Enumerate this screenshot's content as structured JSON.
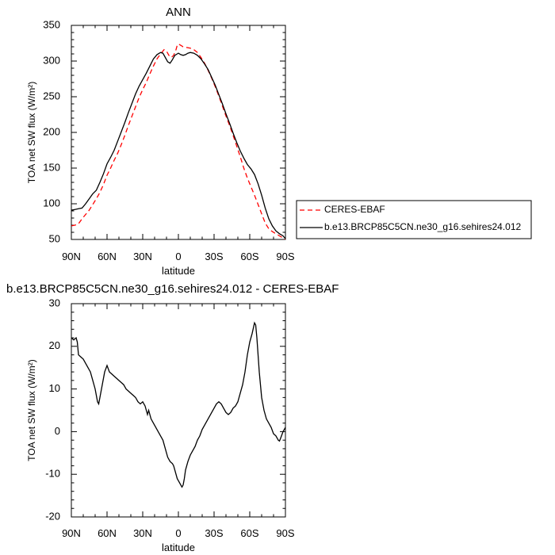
{
  "chart_data": [
    {
      "type": "line",
      "title": "ANN",
      "xlabel": "latitude",
      "ylabel": "TOA net SW flux (W/m²)",
      "x_axis_direction": "90N to 90S",
      "x_ticks": [
        "90N",
        "60N",
        "30N",
        "0",
        "30S",
        "60S",
        "90S"
      ],
      "x_tick_values": [
        90,
        60,
        30,
        0,
        -30,
        -60,
        -90
      ],
      "xlim": [
        90,
        -90
      ],
      "y_ticks": [
        "50",
        "100",
        "150",
        "200",
        "250",
        "300",
        "350"
      ],
      "ylim": [
        50,
        350
      ],
      "grid": false,
      "legend": {
        "placement": "right",
        "entries": [
          "CERES-EBAF",
          "b.e13.BRCP85C5CN.ne30_g16.sehires24.012"
        ]
      },
      "series": [
        {
          "name": "CERES-EBAF",
          "color": "#ff0000",
          "style": "dashed",
          "points": [
            [
              90,
              69
            ],
            [
              87,
              70
            ],
            [
              84,
              72
            ],
            [
              81,
              79
            ],
            [
              78,
              85
            ],
            [
              75,
              91
            ],
            [
              72,
              99
            ],
            [
              69,
              107
            ],
            [
              66,
              116
            ],
            [
              63,
              127
            ],
            [
              60,
              140
            ],
            [
              57,
              150
            ],
            [
              54,
              161
            ],
            [
              51,
              171
            ],
            [
              48,
              183
            ],
            [
              45,
              196
            ],
            [
              42,
              210
            ],
            [
              39,
              223
            ],
            [
              36,
              236
            ],
            [
              33,
              249
            ],
            [
              30,
              260
            ],
            [
              27,
              270
            ],
            [
              24,
              282
            ],
            [
              21,
              293
            ],
            [
              18,
              303
            ],
            [
              15,
              310
            ],
            [
              12,
              316
            ],
            [
              10,
              314
            ],
            [
              8,
              308
            ],
            [
              6,
              305
            ],
            [
              4,
              308
            ],
            [
              2,
              316
            ],
            [
              1,
              322
            ],
            [
              0,
              324
            ],
            [
              -2,
              322
            ],
            [
              -4,
              320
            ],
            [
              -7,
              319
            ],
            [
              -10,
              318
            ],
            [
              -13,
              316
            ],
            [
              -16,
              312
            ],
            [
              -19,
              305
            ],
            [
              -22,
              297
            ],
            [
              -25,
              287
            ],
            [
              -28,
              276
            ],
            [
              -31,
              264
            ],
            [
              -34,
              251
            ],
            [
              -37,
              237
            ],
            [
              -40,
              223
            ],
            [
              -43,
              210
            ],
            [
              -46,
              196
            ],
            [
              -49,
              181
            ],
            [
              -52,
              166
            ],
            [
              -55,
              150
            ],
            [
              -58,
              136
            ],
            [
              -61,
              124
            ],
            [
              -64,
              112
            ],
            [
              -67,
              99
            ],
            [
              -70,
              86
            ],
            [
              -73,
              73
            ],
            [
              -76,
              65
            ],
            [
              -79,
              61
            ],
            [
              -82,
              58
            ],
            [
              -85,
              55
            ],
            [
              -88,
              52
            ],
            [
              -90,
              50
            ]
          ]
        },
        {
          "name": "b.e13.BRCP85C5CN.ne30_g16.sehires24.012",
          "color": "#000000",
          "style": "solid",
          "points": [
            [
              90,
              91
            ],
            [
              87,
              92
            ],
            [
              84,
              93
            ],
            [
              81,
              94
            ],
            [
              78,
              100
            ],
            [
              75,
              107
            ],
            [
              72,
              114
            ],
            [
              69,
              119
            ],
            [
              66,
              130
            ],
            [
              63,
              142
            ],
            [
              60,
              156
            ],
            [
              57,
              165
            ],
            [
              54,
              175
            ],
            [
              51,
              188
            ],
            [
              48,
              201
            ],
            [
              45,
              214
            ],
            [
              42,
              228
            ],
            [
              39,
              241
            ],
            [
              36,
              254
            ],
            [
              33,
              265
            ],
            [
              30,
              274
            ],
            [
              27,
              283
            ],
            [
              24,
              293
            ],
            [
              21,
              303
            ],
            [
              18,
              309
            ],
            [
              15,
              312
            ],
            [
              13,
              311
            ],
            [
              11,
              305
            ],
            [
              9,
              299
            ],
            [
              7,
              297
            ],
            [
              5,
              302
            ],
            [
              3,
              308
            ],
            [
              1,
              310
            ],
            [
              0,
              311
            ],
            [
              -2,
              309
            ],
            [
              -4,
              308
            ],
            [
              -6,
              309
            ],
            [
              -8,
              311
            ],
            [
              -10,
              312
            ],
            [
              -13,
              311
            ],
            [
              -16,
              308
            ],
            [
              -19,
              303
            ],
            [
              -22,
              296
            ],
            [
              -25,
              288
            ],
            [
              -28,
              277
            ],
            [
              -31,
              266
            ],
            [
              -34,
              253
            ],
            [
              -37,
              240
            ],
            [
              -40,
              226
            ],
            [
              -43,
              213
            ],
            [
              -46,
              199
            ],
            [
              -49,
              186
            ],
            [
              -52,
              174
            ],
            [
              -55,
              164
            ],
            [
              -58,
              155
            ],
            [
              -61,
              149
            ],
            [
              -64,
              141
            ],
            [
              -67,
              128
            ],
            [
              -70,
              112
            ],
            [
              -73,
              94
            ],
            [
              -76,
              79
            ],
            [
              -79,
              69
            ],
            [
              -82,
              62
            ],
            [
              -85,
              58
            ],
            [
              -88,
              55
            ],
            [
              -90,
              51
            ]
          ]
        }
      ]
    },
    {
      "type": "line",
      "title": "b.e13.BRCP85C5CN.ne30_g16.sehires24.012 - CERES-EBAF",
      "xlabel": "latitude",
      "ylabel": "TOA net SW flux (W/m²)",
      "x_axis_direction": "90N to 90S",
      "x_ticks": [
        "90N",
        "60N",
        "30N",
        "0",
        "30S",
        "60S",
        "90S"
      ],
      "x_tick_values": [
        90,
        60,
        30,
        0,
        -30,
        -60,
        -90
      ],
      "xlim": [
        90,
        -90
      ],
      "y_ticks": [
        "-20",
        "-10",
        "0",
        "10",
        "20",
        "30"
      ],
      "ylim": [
        -20,
        30
      ],
      "grid": false,
      "series": [
        {
          "color": "#000000",
          "style": "solid",
          "points": [
            [
              90,
              22
            ],
            [
              88,
              21.5
            ],
            [
              86,
              22
            ],
            [
              85,
              21
            ],
            [
              84,
              18
            ],
            [
              82,
              17.5
            ],
            [
              80,
              17
            ],
            [
              78,
              16
            ],
            [
              76,
              15
            ],
            [
              74,
              14
            ],
            [
              72,
              12
            ],
            [
              70,
              10
            ],
            [
              68,
              7
            ],
            [
              67,
              6.5
            ],
            [
              66,
              8
            ],
            [
              64,
              11
            ],
            [
              62,
              14
            ],
            [
              60,
              15.5
            ],
            [
              58,
              14
            ],
            [
              56,
              13.5
            ],
            [
              54,
              13
            ],
            [
              52,
              12.5
            ],
            [
              50,
              12
            ],
            [
              48,
              11.5
            ],
            [
              46,
              11
            ],
            [
              44,
              10
            ],
            [
              42,
              9.5
            ],
            [
              40,
              9
            ],
            [
              38,
              8.5
            ],
            [
              36,
              8
            ],
            [
              34,
              7
            ],
            [
              32,
              6.5
            ],
            [
              30,
              7
            ],
            [
              28,
              6
            ],
            [
              26,
              4
            ],
            [
              25,
              5
            ],
            [
              23,
              3
            ],
            [
              21,
              2
            ],
            [
              19,
              1
            ],
            [
              17,
              0
            ],
            [
              15,
              -1
            ],
            [
              13,
              -2
            ],
            [
              11,
              -4
            ],
            [
              9,
              -6
            ],
            [
              7,
              -7
            ],
            [
              5,
              -7.5
            ],
            [
              4,
              -8
            ],
            [
              3,
              -9
            ],
            [
              2,
              -10
            ],
            [
              1,
              -11
            ],
            [
              0,
              -11.5
            ],
            [
              -1,
              -12
            ],
            [
              -2,
              -12.5
            ],
            [
              -3,
              -13
            ],
            [
              -4,
              -12.5
            ],
            [
              -5,
              -11
            ],
            [
              -6,
              -9
            ],
            [
              -8,
              -7
            ],
            [
              -10,
              -5.5
            ],
            [
              -12,
              -4.5
            ],
            [
              -14,
              -3.5
            ],
            [
              -16,
              -2
            ],
            [
              -18,
              -1
            ],
            [
              -20,
              0.5
            ],
            [
              -22,
              1.5
            ],
            [
              -24,
              2.5
            ],
            [
              -26,
              3.5
            ],
            [
              -28,
              4.5
            ],
            [
              -30,
              5.5
            ],
            [
              -32,
              6.5
            ],
            [
              -34,
              7
            ],
            [
              -36,
              6.5
            ],
            [
              -38,
              5.5
            ],
            [
              -40,
              4.5
            ],
            [
              -42,
              4
            ],
            [
              -44,
              4.5
            ],
            [
              -46,
              5.5
            ],
            [
              -48,
              6
            ],
            [
              -50,
              7
            ],
            [
              -52,
              9
            ],
            [
              -54,
              11
            ],
            [
              -56,
              14
            ],
            [
              -58,
              18
            ],
            [
              -60,
              21
            ],
            [
              -62,
              23
            ],
            [
              -64,
              25.5
            ],
            [
              -65,
              25
            ],
            [
              -66,
              22
            ],
            [
              -68,
              14
            ],
            [
              -70,
              8
            ],
            [
              -72,
              5
            ],
            [
              -74,
              3
            ],
            [
              -76,
              2
            ],
            [
              -78,
              1
            ],
            [
              -80,
              -0.5
            ],
            [
              -82,
              -1
            ],
            [
              -84,
              -2
            ],
            [
              -85,
              -2.2
            ],
            [
              -86,
              -1.5
            ],
            [
              -88,
              0
            ],
            [
              -90,
              1
            ]
          ]
        }
      ]
    }
  ]
}
